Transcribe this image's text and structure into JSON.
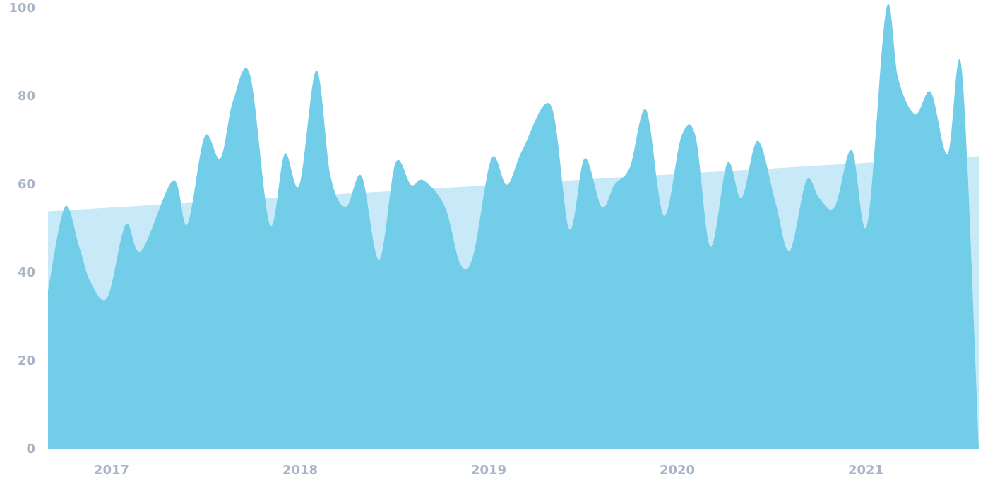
{
  "chart_data": {
    "type": "area",
    "series": [
      {
        "color": "#c8eaf8",
        "x": [
          2016.663,
          2021.599
        ],
        "values": [
          54,
          66.5
        ]
      },
      {
        "color": "#72cde9",
        "x": [
          2016.663,
          2016.753,
          2016.828,
          2016.888,
          2016.978,
          2017.075,
          2017.157,
          2017.326,
          2017.401,
          2017.494,
          2017.577,
          2017.644,
          2017.734,
          2017.839,
          2017.918,
          2017.996,
          2018.086,
          2018.161,
          2018.243,
          2018.326,
          2018.419,
          2018.506,
          2018.588,
          2018.655,
          2018.768,
          2018.85,
          2018.918,
          2019.015,
          2019.097,
          2019.18,
          2019.33,
          2019.427,
          2019.509,
          2019.599,
          2019.667,
          2019.749,
          2019.835,
          2019.929,
          2020.022,
          2020.097,
          2020.176,
          2020.266,
          2020.341,
          2020.427,
          2020.521,
          2020.596,
          2020.685,
          2020.753,
          2020.835,
          2020.925,
          2021.007,
          2021.109,
          2021.172,
          2021.262,
          2021.345,
          2021.434,
          2021.509,
          2021.599
        ],
        "values": [
          36,
          55,
          46,
          38,
          34.5,
          51,
          45,
          61,
          51,
          71,
          66,
          79,
          85,
          51,
          67,
          60,
          86,
          62,
          55,
          62,
          43,
          65,
          60,
          61,
          55,
          42,
          44,
          66,
          60,
          68,
          78,
          50,
          66,
          55,
          60,
          64,
          77,
          53,
          71,
          71,
          46,
          65,
          57,
          70,
          56,
          45,
          61,
          57,
          55,
          68,
          51,
          100,
          84,
          76,
          81,
          67,
          86,
          0
        ]
      }
    ],
    "xlim": [
      2016.663,
      2021.599
    ],
    "xticks": [
      2017,
      2018,
      2019,
      2020,
      2021
    ],
    "ylim": [
      0,
      100
    ],
    "yticks": [
      0,
      20,
      40,
      60,
      80,
      100
    ],
    "grid": false
  }
}
